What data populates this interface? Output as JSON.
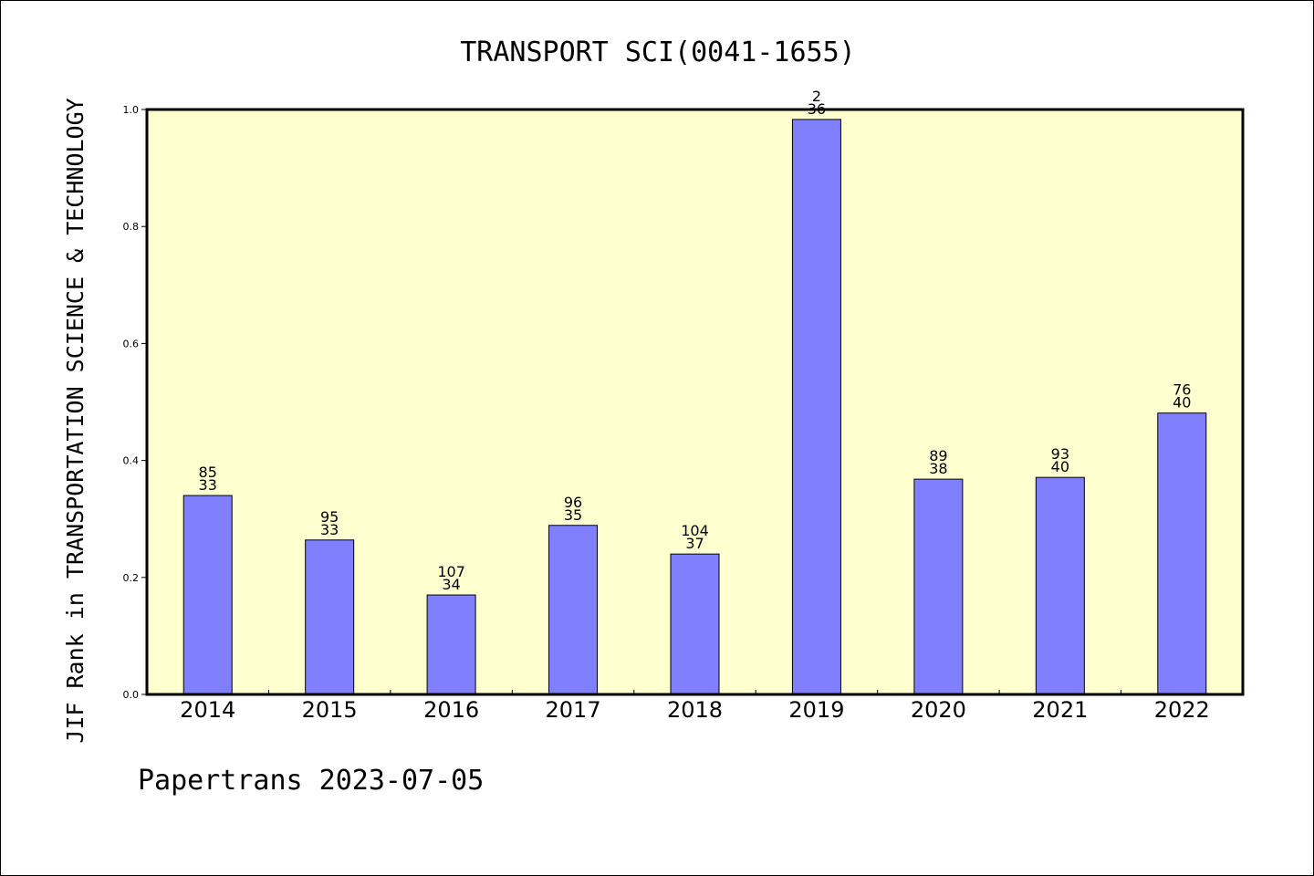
{
  "chart_data": {
    "type": "bar",
    "title": "TRANSPORT SCI(0041-1655)",
    "ylabel": "JIF Rank in TRANSPORTATION SCIENCE & TECHNOLOGY",
    "xlabel": "",
    "credit": "Papertrans 2023-07-05",
    "categories": [
      "2014",
      "2015",
      "2016",
      "2017",
      "2018",
      "2019",
      "2020",
      "2021",
      "2022"
    ],
    "values": [
      0.34,
      0.264,
      0.17,
      0.289,
      0.24,
      0.983,
      0.368,
      0.371,
      0.481
    ],
    "label_top": [
      "85",
      "95",
      "107",
      "96",
      "104",
      "2",
      "89",
      "93",
      "76"
    ],
    "label_bottom": [
      "33",
      "33",
      "34",
      "35",
      "37",
      "36",
      "38",
      "40",
      "40"
    ],
    "ylim": [
      0,
      1.0
    ],
    "yticks": [
      "0.0",
      "0.2",
      "0.4",
      "0.6",
      "0.8",
      "1.0"
    ],
    "grid": false,
    "colors": {
      "bar_fill": "#8080ff",
      "plot_background": "#ffffd0",
      "axis": "#000000"
    }
  }
}
